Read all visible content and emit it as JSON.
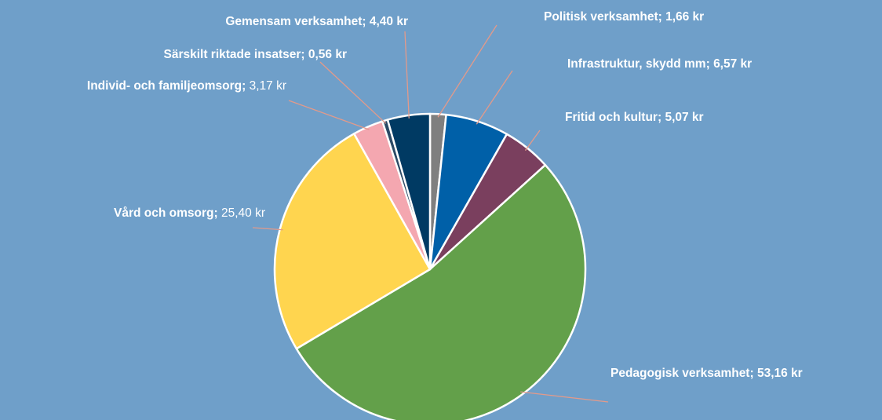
{
  "chart_data": {
    "type": "pie",
    "categories": [
      "Politisk verksamhet;",
      "Infrastruktur, skydd mm;",
      "Fritid och kultur;",
      "Pedagogisk verksamhet;",
      "Vård och omsorg;",
      "Individ- och familjeomsorg;",
      "Särskilt riktade insatser;",
      "Gemensam verksamhet;"
    ],
    "values": [
      1.66,
      6.57,
      5.07,
      53.16,
      25.4,
      3.17,
      0.56,
      4.4
    ],
    "value_labels": [
      "1,66 kr",
      "6,57 kr",
      "5,07 kr",
      "53,16 kr",
      "25,40 kr",
      "3,17 kr",
      "0,56 kr",
      "4,40 kr"
    ],
    "colors": [
      "#7f7f7f",
      "#0060a8",
      "#7a3f5e",
      "#63a04a",
      "#ffd54f",
      "#f4a7b0",
      "#2b4a66",
      "#003a63"
    ]
  }
}
